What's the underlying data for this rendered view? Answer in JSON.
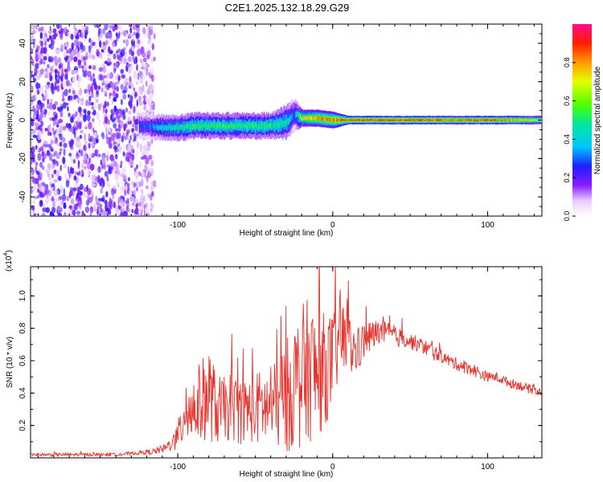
{
  "figure": {
    "title": "C2E1.2025.132.18.29.G29"
  },
  "chart_data": [
    {
      "type": "heatmap",
      "xlabel": "Height of straight line (km)",
      "ylabel": "Frequency (Hz)",
      "xlim": [
        -195,
        135
      ],
      "ylim": [
        -50,
        50
      ],
      "x_ticks": [
        -100,
        0,
        100
      ],
      "x_tick_labels": [
        "-100",
        "0",
        "100"
      ],
      "y_ticks": [
        -40,
        -20,
        0,
        20,
        40
      ],
      "y_tick_labels": [
        "-40",
        "-20",
        "0",
        "20",
        "40"
      ],
      "colorbar": {
        "label": "Normalized spectral amplitude",
        "range": [
          0,
          1
        ],
        "ticks": [
          0.0,
          0.2,
          0.4,
          0.6,
          0.8
        ],
        "tick_labels": [
          "0.0",
          "0.2",
          "0.4",
          "0.6",
          "0.8"
        ]
      },
      "ridge": {
        "description_free_trace": true,
        "x": [
          -120,
          -110,
          -100,
          -90,
          -80,
          -70,
          -60,
          -50,
          -40,
          -30,
          -25,
          -20,
          -10,
          0,
          10,
          20,
          40,
          60,
          80,
          100,
          120,
          135
        ],
        "center_freq": [
          -3,
          -4,
          -4,
          -3,
          -3,
          -3,
          -3,
          -3,
          -3,
          -1,
          3,
          1,
          1,
          0,
          0,
          0,
          0,
          0,
          0,
          0,
          0,
          0
        ],
        "half_width": [
          3,
          3,
          3,
          3,
          3,
          3,
          3,
          3,
          3,
          4,
          4,
          2,
          2,
          2,
          1,
          1,
          1,
          1,
          1,
          1,
          1,
          1
        ],
        "peak_amplitude": [
          0.3,
          0.45,
          0.5,
          0.55,
          0.55,
          0.55,
          0.55,
          0.55,
          0.55,
          0.5,
          0.3,
          0.75,
          0.85,
          0.9,
          0.95,
          0.95,
          0.95,
          0.95,
          0.9,
          0.95,
          0.85,
          0.75
        ]
      },
      "noise_region": {
        "x_range": [
          -195,
          -115
        ],
        "freq_range": [
          -50,
          50
        ],
        "amplitude": [
          0.05,
          0.25
        ]
      }
    },
    {
      "type": "line",
      "xlabel": "Height of straight line (km)",
      "ylabel": "SNR (10 * v/v)",
      "y_multiplier_label": "(x10",
      "y_multiplier_exponent": "4",
      "xlim": [
        -195,
        135
      ],
      "ylim": [
        0,
        1.18
      ],
      "x_ticks": [
        -100,
        0,
        100
      ],
      "x_tick_labels": [
        "-100",
        "0",
        "100"
      ],
      "y_ticks": [
        0.2,
        0.4,
        0.6,
        0.8,
        1.0
      ],
      "y_tick_labels": [
        "0.2",
        "0.4",
        "0.6",
        "0.8",
        "1.0"
      ],
      "series": [
        {
          "color": "#e8322c",
          "x": [
            -195,
            -180,
            -160,
            -140,
            -125,
            -115,
            -108,
            -103,
            -100,
            -95,
            -90,
            -85,
            -80,
            -75,
            -70,
            -65,
            -60,
            -55,
            -50,
            -45,
            -40,
            -35,
            -30,
            -25,
            -20,
            -15,
            -10,
            -5,
            0,
            5,
            10,
            15,
            20,
            25,
            30,
            35,
            40,
            45,
            50,
            55,
            60,
            65,
            70,
            75,
            80,
            85,
            90,
            95,
            100,
            105,
            110,
            115,
            120,
            125,
            130,
            135
          ],
          "values": [
            0.02,
            0.02,
            0.02,
            0.02,
            0.03,
            0.04,
            0.06,
            0.1,
            0.12,
            0.3,
            0.3,
            0.35,
            0.4,
            0.3,
            0.3,
            0.32,
            0.28,
            0.3,
            0.3,
            0.32,
            0.3,
            0.35,
            0.38,
            0.45,
            0.5,
            0.55,
            0.5,
            0.55,
            0.6,
            0.75,
            0.7,
            0.65,
            0.72,
            0.75,
            0.78,
            0.77,
            0.75,
            0.74,
            0.72,
            0.7,
            0.68,
            0.65,
            0.63,
            0.6,
            0.58,
            0.56,
            0.55,
            0.52,
            0.5,
            0.5,
            0.48,
            0.46,
            0.45,
            0.43,
            0.42,
            0.4
          ],
          "spread": [
            0.01,
            0.01,
            0.01,
            0.01,
            0.01,
            0.02,
            0.03,
            0.05,
            0.1,
            0.2,
            0.22,
            0.25,
            0.3,
            0.22,
            0.2,
            0.22,
            0.2,
            0.2,
            0.22,
            0.25,
            0.22,
            0.3,
            0.35,
            0.4,
            0.45,
            0.45,
            0.4,
            0.35,
            0.3,
            0.25,
            0.2,
            0.15,
            0.12,
            0.1,
            0.08,
            0.07,
            0.06,
            0.06,
            0.05,
            0.05,
            0.05,
            0.05,
            0.04,
            0.04,
            0.04,
            0.04,
            0.04,
            0.04,
            0.03,
            0.03,
            0.03,
            0.03,
            0.03,
            0.03,
            0.03,
            0.03
          ]
        }
      ]
    }
  ]
}
